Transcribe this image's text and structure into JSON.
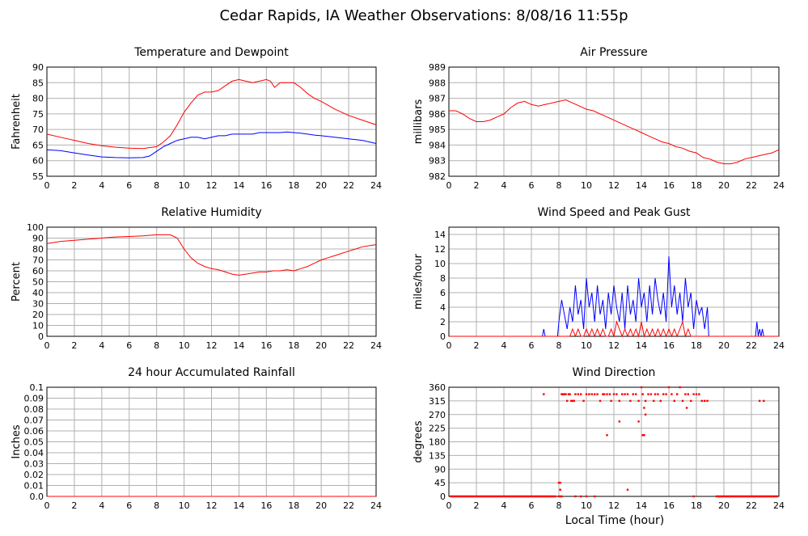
{
  "page": {
    "title": "Cedar Rapids, IA Weather Observations: 8/08/16 11:55p",
    "x_axis_label": "Local Time (hour)"
  },
  "colors": {
    "primary": "#ff0000",
    "secondary": "#0000ff",
    "grid": "#b0b0b0"
  },
  "chart_data": [
    {
      "id": "temp",
      "type": "line",
      "title": "Temperature and Dewpoint",
      "ylabel": "Fahrenheit",
      "xlim": [
        0,
        24
      ],
      "ylim": [
        55,
        90
      ],
      "xticks": [
        0,
        2,
        4,
        6,
        8,
        10,
        12,
        14,
        16,
        18,
        20,
        22,
        24
      ],
      "yticks": [
        "55",
        "60",
        "65",
        "70",
        "75",
        "80",
        "85",
        "90"
      ],
      "grid": true,
      "series": [
        {
          "color": "#ff0000",
          "x": [
            0,
            1,
            2,
            3,
            4,
            5,
            6,
            7,
            8,
            8.5,
            9,
            9.5,
            10,
            10.5,
            11,
            11.5,
            12,
            12.5,
            13,
            13.5,
            14,
            14.5,
            15,
            15.5,
            16,
            16.3,
            16.6,
            17,
            17.5,
            18,
            18.5,
            19,
            19.5,
            20,
            21,
            22,
            23,
            24
          ],
          "y": [
            68.5,
            67.5,
            66.5,
            65.5,
            64.8,
            64.3,
            64,
            63.9,
            64.5,
            66,
            68,
            71.5,
            75.5,
            78.5,
            81,
            82,
            82,
            82.5,
            84,
            85.5,
            86,
            85.5,
            85,
            85.5,
            86,
            85.5,
            83.5,
            85,
            85,
            85,
            83.5,
            81.5,
            80,
            79,
            76.5,
            74.5,
            73,
            71.5
          ]
        },
        {
          "color": "#0000ff",
          "x": [
            0,
            1,
            2,
            3,
            4,
            5,
            6,
            7,
            7.5,
            8,
            8.5,
            9,
            9.5,
            10,
            10.5,
            11,
            11.5,
            12,
            12.5,
            13,
            13.5,
            14,
            14.5,
            15,
            15.5,
            16,
            16.5,
            17,
            17.5,
            18,
            18.5,
            19,
            19.5,
            20,
            21,
            22,
            23,
            24
          ],
          "y": [
            63.5,
            63.2,
            62.5,
            61.8,
            61.2,
            61,
            60.9,
            61,
            61.5,
            63,
            64.5,
            65.5,
            66.5,
            67,
            67.5,
            67.5,
            67,
            67.5,
            68,
            68,
            68.5,
            68.5,
            68.5,
            68.5,
            69,
            69,
            69,
            69,
            69.2,
            69,
            68.8,
            68.5,
            68.2,
            68,
            67.5,
            67,
            66.5,
            65.5
          ]
        }
      ]
    },
    {
      "id": "pressure",
      "type": "line",
      "title": "Air Pressure",
      "ylabel": "millibars",
      "xlim": [
        0,
        24
      ],
      "ylim": [
        982,
        989
      ],
      "xticks": [
        0,
        2,
        4,
        6,
        8,
        10,
        12,
        14,
        16,
        18,
        20,
        22,
        24
      ],
      "yticks": [
        "982",
        "983",
        "984",
        "985",
        "986",
        "987",
        "988",
        "989"
      ],
      "grid": true,
      "series": [
        {
          "color": "#ff0000",
          "x": [
            0,
            0.5,
            1,
            1.5,
            2,
            2.5,
            3,
            3.5,
            4,
            4.5,
            5,
            5.5,
            6,
            6.5,
            7,
            7.5,
            8,
            8.5,
            9,
            9.5,
            10,
            10.5,
            11,
            11.5,
            12,
            12.5,
            13,
            13.5,
            14,
            14.5,
            15,
            15.5,
            16,
            16.5,
            17,
            17.5,
            18,
            18.5,
            19,
            19.5,
            20,
            20.5,
            21,
            21.5,
            22,
            22.5,
            23,
            23.5,
            24
          ],
          "y": [
            986.2,
            986.2,
            986.0,
            985.7,
            985.5,
            985.5,
            985.6,
            985.8,
            986.0,
            986.4,
            986.7,
            986.8,
            986.6,
            986.5,
            986.6,
            986.7,
            986.8,
            986.9,
            986.7,
            986.5,
            986.3,
            986.2,
            986.0,
            985.8,
            985.6,
            985.4,
            985.2,
            985.0,
            984.8,
            984.6,
            984.4,
            984.2,
            984.1,
            983.9,
            983.8,
            983.6,
            983.5,
            983.2,
            983.1,
            982.9,
            982.8,
            982.8,
            982.9,
            983.1,
            983.2,
            983.3,
            983.4,
            983.5,
            983.7
          ]
        }
      ]
    },
    {
      "id": "humidity",
      "type": "line",
      "title": "Relative Humidity",
      "ylabel": "Percent",
      "xlim": [
        0,
        24
      ],
      "ylim": [
        0,
        100
      ],
      "xticks": [
        0,
        2,
        4,
        6,
        8,
        10,
        12,
        14,
        16,
        18,
        20,
        22,
        24
      ],
      "yticks": [
        "0",
        "10",
        "20",
        "30",
        "40",
        "50",
        "60",
        "70",
        "80",
        "90",
        "100"
      ],
      "grid": true,
      "series": [
        {
          "color": "#ff0000",
          "x": [
            0,
            1,
            2,
            3,
            4,
            5,
            6,
            7,
            8,
            9,
            9.5,
            10,
            10.5,
            11,
            11.5,
            12,
            12.5,
            13,
            13.5,
            14,
            14.5,
            15,
            15.5,
            16,
            16.5,
            17,
            17.5,
            18,
            18.5,
            19,
            19.5,
            20,
            20.5,
            21,
            21.5,
            22,
            22.5,
            23,
            23.5,
            24
          ],
          "y": [
            85,
            87,
            88,
            89,
            90,
            91,
            91.5,
            92,
            93,
            93,
            90,
            80,
            72,
            67,
            64,
            62,
            61,
            59,
            57,
            56,
            57,
            58,
            59,
            59,
            60,
            60,
            61,
            60,
            62,
            64,
            67,
            70,
            72,
            74,
            76,
            78,
            80,
            82,
            83,
            84
          ]
        }
      ]
    },
    {
      "id": "wind",
      "type": "line",
      "title": "Wind Speed and Peak Gust",
      "ylabel": "miles/hour",
      "xlim": [
        0,
        24
      ],
      "ylim": [
        0,
        15
      ],
      "xticks": [
        0,
        2,
        4,
        6,
        8,
        10,
        12,
        14,
        16,
        18,
        20,
        22,
        24
      ],
      "yticks": [
        "0",
        "2",
        "4",
        "6",
        "8",
        "10",
        "12",
        "14"
      ],
      "grid": true,
      "series": [
        {
          "color": "#0000ff",
          "x": [
            0,
            6.8,
            6.9,
            7.0,
            7.1,
            7.9,
            8.0,
            8.2,
            8.4,
            8.6,
            8.8,
            9.0,
            9.2,
            9.4,
            9.6,
            9.8,
            10.0,
            10.2,
            10.4,
            10.6,
            10.8,
            11.0,
            11.2,
            11.4,
            11.6,
            11.8,
            12.0,
            12.2,
            12.4,
            12.6,
            12.8,
            13.0,
            13.2,
            13.4,
            13.6,
            13.8,
            14.0,
            14.2,
            14.4,
            14.6,
            14.8,
            15.0,
            15.2,
            15.4,
            15.6,
            15.8,
            16.0,
            16.2,
            16.4,
            16.6,
            16.8,
            17.0,
            17.2,
            17.4,
            17.6,
            17.8,
            18.0,
            18.2,
            18.4,
            18.6,
            18.8,
            18.9,
            22.3,
            22.4,
            22.5,
            22.6,
            22.7,
            22.8,
            22.9,
            23.0,
            24
          ],
          "y": [
            0,
            0,
            1,
            0,
            0,
            0,
            2,
            5,
            3,
            1,
            4,
            2,
            7,
            3,
            5,
            1,
            8,
            4,
            6,
            2,
            7,
            3,
            5,
            1,
            6,
            3,
            7,
            4,
            2,
            6,
            1,
            7,
            3,
            5,
            2,
            8,
            4,
            6,
            2,
            7,
            3,
            8,
            5,
            3,
            6,
            2,
            11,
            4,
            7,
            3,
            6,
            2,
            8,
            4,
            6,
            1,
            5,
            3,
            4,
            1,
            4,
            0,
            0,
            2,
            0,
            1,
            0,
            1,
            0,
            0,
            0
          ]
        },
        {
          "color": "#ff0000",
          "x": [
            0,
            8.8,
            9.0,
            9.2,
            9.4,
            9.6,
            9.8,
            10.0,
            10.2,
            10.4,
            10.6,
            10.8,
            11.0,
            11.2,
            11.4,
            11.6,
            11.8,
            12.0,
            12.2,
            12.4,
            12.6,
            12.8,
            13.0,
            13.2,
            13.4,
            13.6,
            13.8,
            14.0,
            14.2,
            14.4,
            14.6,
            14.8,
            15.0,
            15.2,
            15.4,
            15.6,
            15.8,
            16.0,
            16.2,
            16.4,
            16.6,
            16.8,
            17.0,
            17.2,
            17.4,
            17.6,
            17.8,
            24
          ],
          "y": [
            0,
            0,
            1,
            0,
            1,
            0,
            0,
            1,
            0,
            1,
            0,
            1,
            0,
            1,
            0,
            0,
            1,
            0,
            2,
            1,
            0,
            1,
            0,
            1,
            0,
            1,
            0,
            2,
            0,
            1,
            0,
            1,
            0,
            1,
            0,
            1,
            0,
            1,
            0,
            1,
            0,
            1,
            2,
            0,
            1,
            0,
            0,
            0
          ]
        }
      ]
    },
    {
      "id": "rain",
      "type": "line",
      "title": "24 hour Accumulated Rainfall",
      "ylabel": "Inches",
      "xlim": [
        0,
        24
      ],
      "ylim": [
        0,
        0.1
      ],
      "xticks": [
        0,
        2,
        4,
        6,
        8,
        10,
        12,
        14,
        16,
        18,
        20,
        22,
        24
      ],
      "yticks": [
        "0.0",
        "0.01",
        "0.02",
        "0.03",
        "0.04",
        "0.05",
        "0.06",
        "0.07",
        "0.08",
        "0.09",
        "0.1"
      ],
      "grid": true,
      "series": [
        {
          "color": "#ff0000",
          "x": [
            0,
            24
          ],
          "y": [
            0,
            0
          ]
        }
      ]
    },
    {
      "id": "direction",
      "type": "scatter",
      "title": "Wind Direction",
      "ylabel": "degrees",
      "xlim": [
        0,
        24
      ],
      "ylim": [
        0,
        360
      ],
      "xticks": [
        0,
        2,
        4,
        6,
        8,
        10,
        12,
        14,
        16,
        18,
        20,
        22,
        24
      ],
      "yticks": [
        "0",
        "45",
        "90",
        "135",
        "180",
        "225",
        "270",
        "315",
        "360"
      ],
      "grid": true,
      "series": [
        {
          "color": "#ff0000",
          "x": [
            6.9,
            8.0,
            8.1,
            8.2,
            8.3,
            8.4,
            8.5,
            8.6,
            8.7,
            8.8,
            8.9,
            9.0,
            9.1,
            9.2,
            9.4,
            9.6,
            9.8,
            10.0,
            10.2,
            10.4,
            10.6,
            10.8,
            11.0,
            11.2,
            11.3,
            11.5,
            11.7,
            11.8,
            12.0,
            12.2,
            12.4,
            12.6,
            12.8,
            13.0,
            13.2,
            13.4,
            13.6,
            13.8,
            14.0,
            14.1,
            14.3,
            14.5,
            14.7,
            14.9,
            15.0,
            15.2,
            15.4,
            15.6,
            15.8,
            16.0,
            16.2,
            16.4,
            16.6,
            16.8,
            17.0,
            17.2,
            17.4,
            17.6,
            17.8,
            18.0,
            18.2,
            18.4,
            18.6,
            18.8,
            22.6,
            22.9,
            8.0,
            8.1,
            8.2,
            9.2,
            9.6,
            10.0,
            10.6,
            13.0,
            14.1,
            14.2,
            14.3,
            11.5,
            12.4,
            13.8,
            14.2,
            17.3,
            17.8,
            8.1
          ],
          "y": [
            337,
            45,
            45,
            337,
            337,
            337,
            337,
            315,
            337,
            337,
            315,
            315,
            315,
            337,
            337,
            337,
            315,
            337,
            337,
            337,
            337,
            337,
            315,
            337,
            337,
            337,
            337,
            315,
            337,
            337,
            315,
            337,
            337,
            337,
            315,
            337,
            337,
            315,
            360,
            337,
            315,
            337,
            337,
            315,
            337,
            337,
            315,
            337,
            337,
            360,
            337,
            315,
            337,
            360,
            315,
            337,
            337,
            315,
            337,
            337,
            337,
            315,
            315,
            315,
            315,
            315,
            0,
            0,
            0,
            0,
            0,
            0,
            0,
            22,
            202,
            202,
            270,
            202,
            247,
            247,
            292,
            292,
            0,
            22
          ]
        }
      ]
    }
  ]
}
